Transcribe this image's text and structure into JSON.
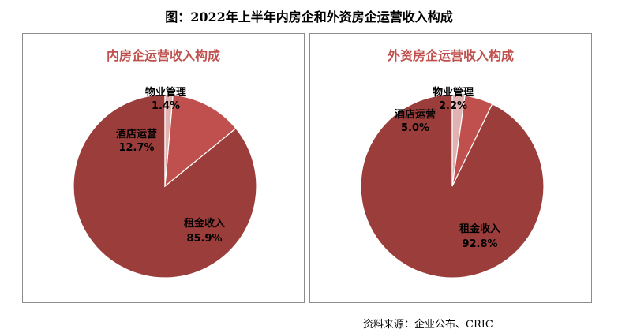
{
  "title": "图：2022年上半年内房企和外资房企运营收入构成",
  "source": "资料来源：企业公布、CRIC",
  "colors": {
    "rent": "#9b3d3b",
    "hotel": "#c0504d",
    "property": "#e0b3b2",
    "stroke": "#ffffff"
  },
  "chart_data": [
    {
      "type": "pie",
      "title": "内房企运营收入构成",
      "slices": [
        {
          "label": "租金收入",
          "value": 85.9,
          "text": "85.9%"
        },
        {
          "label": "酒店运营",
          "value": 12.7,
          "text": "12.7%"
        },
        {
          "label": "物业管理",
          "value": 1.4,
          "text": "1.4%"
        }
      ]
    },
    {
      "type": "pie",
      "title": "外资房企运营收入构成",
      "slices": [
        {
          "label": "租金收入",
          "value": 92.8,
          "text": "92.8%"
        },
        {
          "label": "酒店运营",
          "value": 5.0,
          "text": "5.0%"
        },
        {
          "label": "物业管理",
          "value": 2.2,
          "text": "2.2%"
        }
      ]
    }
  ]
}
